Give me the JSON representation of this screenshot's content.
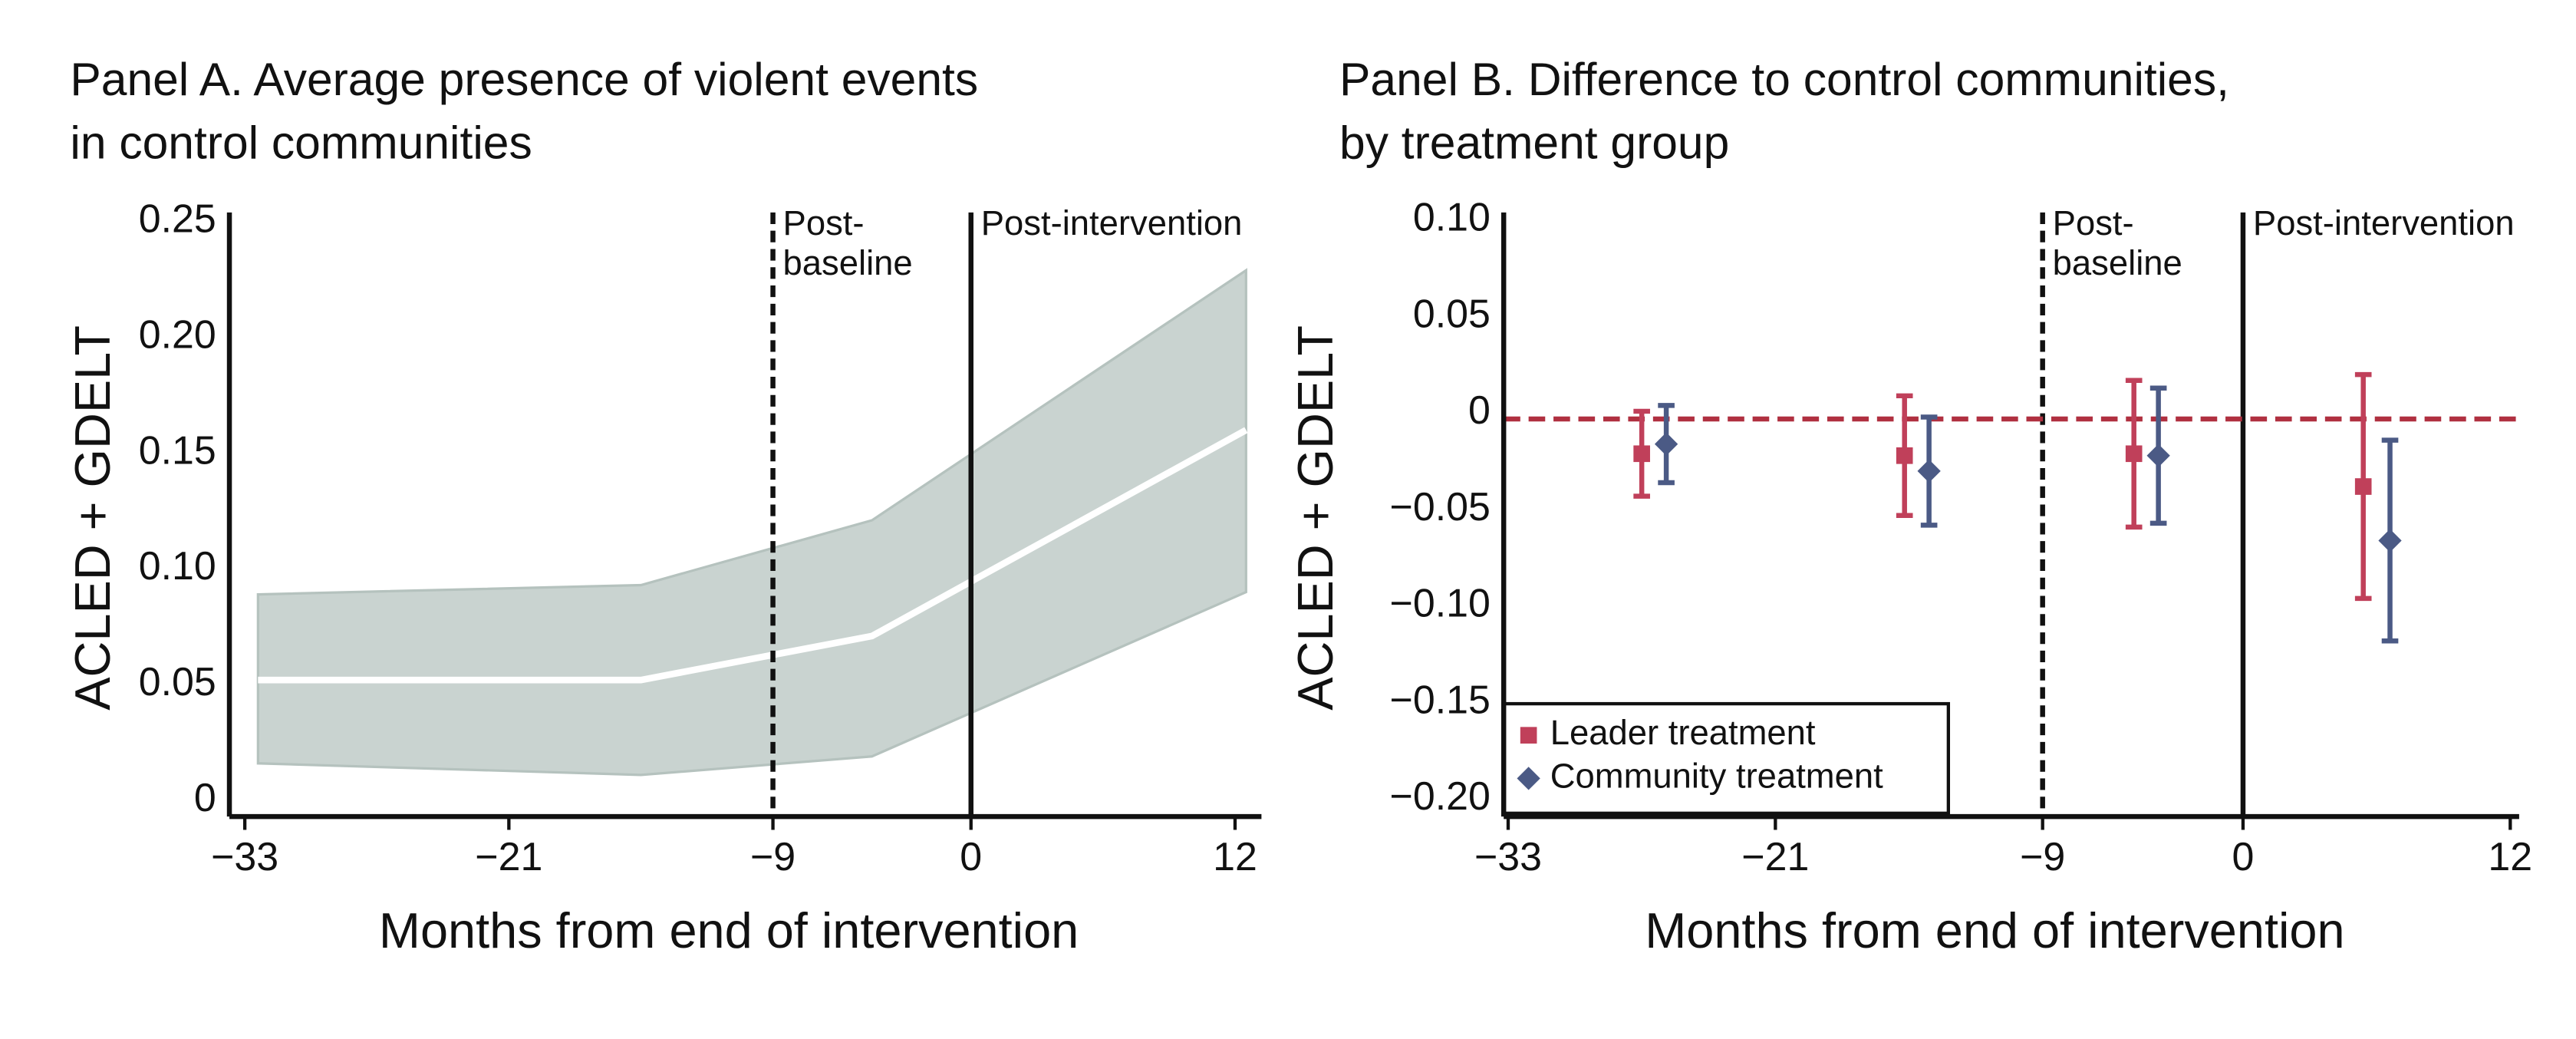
{
  "chart_data": [
    {
      "type": "area",
      "title": [
        "Panel A. Average presence of violent events",
        "in control communities"
      ],
      "ylabel": "ACLED + GDELT",
      "xlabel": "Months from end of intervention",
      "x": [
        -32.4,
        -15,
        -4.5,
        12.5
      ],
      "values": [
        0.052,
        0.052,
        0.071,
        0.16
      ],
      "upper": [
        0.089,
        0.093,
        0.121,
        0.229
      ],
      "lower": [
        0.016,
        0.011,
        0.019,
        0.09
      ],
      "color": "#ffffff",
      "band_color": "#c9d3d0",
      "xlim": [
        -33.7,
        13.2
      ],
      "ylim": [
        -0.007,
        0.254
      ],
      "xticks": [
        {
          "value": -33,
          "label": "−33"
        },
        {
          "value": -21,
          "label": "−21"
        },
        {
          "value": -9,
          "label": "−9"
        },
        0,
        12
      ],
      "yticks": [
        0,
        0.05,
        {
          "value": 0.1,
          "label": "0.10"
        },
        0.15,
        {
          "value": 0.2,
          "label": "0.20"
        },
        0.25
      ],
      "vlines": [
        {
          "x": -9,
          "style": "dashed",
          "label": [
            "Post-",
            "baseline"
          ]
        },
        {
          "x": 0,
          "style": "solid",
          "label": [
            "Post-intervention"
          ]
        }
      ]
    },
    {
      "type": "errorbar",
      "title": [
        "Panel B. Difference to control communities,",
        "by treatment group"
      ],
      "ylabel": "ACLED + GDELT",
      "xlabel": "Months from end of intervention",
      "series": [
        {
          "name": "Leader treatment",
          "color": "#c0405a",
          "marker": "square",
          "x": [
            -27,
            -15.2,
            -4.9,
            5.4
          ],
          "values": [
            -0.021,
            -0.022,
            -0.021,
            -0.038
          ],
          "errors": [
            0.022,
            0.031,
            0.038,
            0.058
          ]
        },
        {
          "name": "Community treatment",
          "color": "#4b5a85",
          "marker": "diamond",
          "x": [
            -25.9,
            -14.1,
            -3.8,
            6.6
          ],
          "values": [
            -0.016,
            -0.03,
            -0.022,
            -0.066
          ],
          "errors": [
            0.02,
            0.028,
            0.035,
            0.052
          ]
        }
      ],
      "hline": {
        "y": -0.003,
        "color": "#b03040",
        "style": "dashed"
      },
      "xlim": [
        -33.2,
        12.4
      ],
      "ylim": [
        -0.209,
        0.104
      ],
      "xticks": [
        {
          "value": -33,
          "label": "−33"
        },
        {
          "value": -21,
          "label": "−21"
        },
        {
          "value": -9,
          "label": "−9"
        },
        0,
        12
      ],
      "yticks": [
        {
          "value": -0.2,
          "label": "−0.20"
        },
        {
          "value": -0.15,
          "label": "−0.15"
        },
        {
          "value": -0.1,
          "label": "−0.10"
        },
        {
          "value": -0.05,
          "label": "−0.05"
        },
        0,
        0.05,
        {
          "value": 0.1,
          "label": "0.10"
        }
      ],
      "vlines": [
        {
          "x": -9,
          "style": "dashed",
          "label": [
            "Post-",
            "baseline"
          ]
        },
        {
          "x": 0,
          "style": "solid",
          "label": [
            "Post-intervention"
          ]
        }
      ],
      "legend": "lower left"
    }
  ]
}
